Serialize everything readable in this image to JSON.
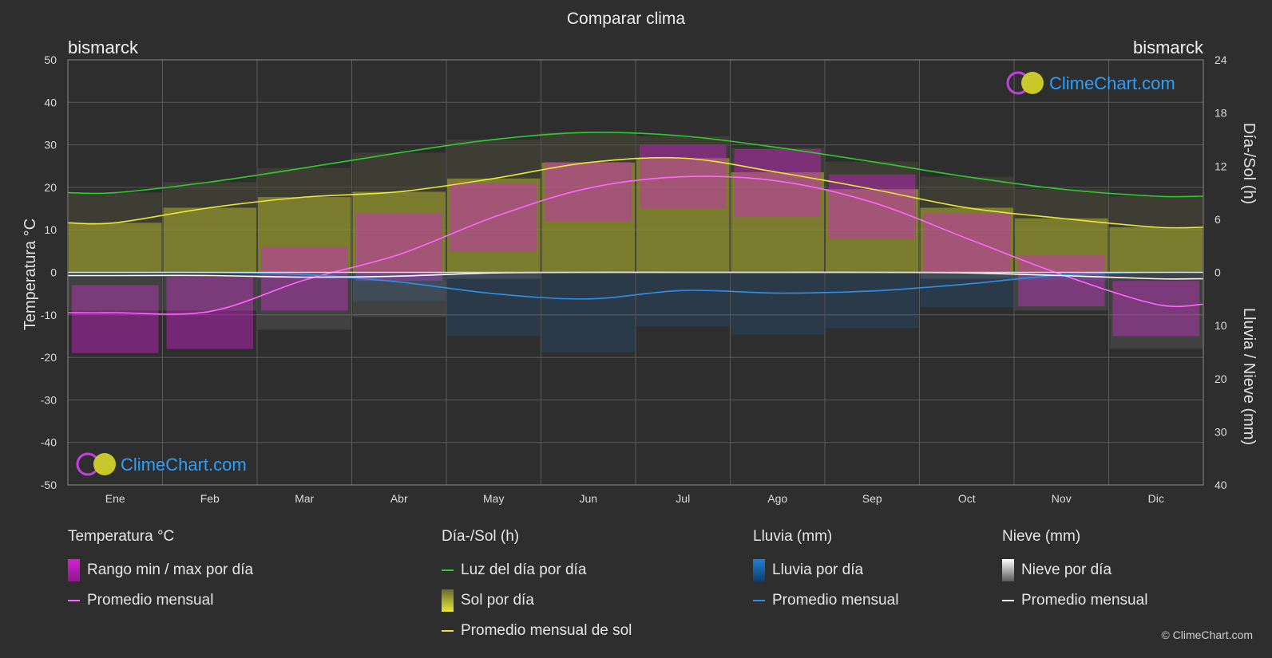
{
  "title": "Comparar clima",
  "location_left": "bismarck",
  "location_right": "bismarck",
  "brand": "ClimeChart.com",
  "copyright": "© ClimeChart.com",
  "colors": {
    "background": "#2e2e2e",
    "temp_range": "#d61fd6",
    "temp_avg": "#ff66ff",
    "daylight": "#2ecc2e",
    "sunshine_fill": "#b0b02a",
    "sun_avg": "#e8e83a",
    "rain": "#1f7fd6",
    "rain_avg": "#2f8fe8",
    "snow": "#9a9a9a",
    "snow_avg": "#ffffff",
    "brand_text": "#2aa0ff"
  },
  "legend": {
    "temperature": {
      "title": "Temperatura °C",
      "items": [
        "Rango min / max por día",
        "Promedio mensual"
      ]
    },
    "daylight": {
      "title": "Día-/Sol (h)",
      "items": [
        "Luz del día por día",
        "Sol por día",
        "Promedio mensual de sol"
      ]
    },
    "rain": {
      "title": "Lluvia (mm)",
      "items": [
        "Lluvia por día",
        "Promedio mensual"
      ]
    },
    "snow": {
      "title": "Nieve (mm)",
      "items": [
        "Nieve por día",
        "Promedio mensual"
      ]
    }
  },
  "chart_data": {
    "type": "line",
    "title": "Comparar clima",
    "categories": [
      "Ene",
      "Feb",
      "Mar",
      "Abr",
      "May",
      "Jun",
      "Jul",
      "Ago",
      "Sep",
      "Oct",
      "Nov",
      "Dic"
    ],
    "y_left": {
      "label": "Temperatura °C",
      "range": [
        -50,
        50
      ],
      "ticks": [
        50,
        40,
        30,
        20,
        10,
        0,
        -10,
        -20,
        -30,
        -40,
        -50
      ]
    },
    "y_right_top": {
      "label": "Día-/Sol (h)",
      "range": [
        0,
        24
      ],
      "ticks": [
        24,
        18,
        12,
        6,
        0
      ]
    },
    "y_right_bottom": {
      "label": "Lluvia / Nieve (mm)",
      "range": [
        0,
        40
      ],
      "ticks": [
        0,
        10,
        20,
        30,
        40
      ]
    },
    "grid": true,
    "series": [
      {
        "name": "Promedio mensual",
        "axis": "temperature",
        "values": [
          -9.5,
          -9.2,
          -1.8,
          4.2,
          13,
          19.8,
          22.5,
          21.5,
          16.5,
          8,
          -0.5,
          -7.5
        ]
      },
      {
        "name": "Luz del día por día",
        "axis": "hours",
        "values": [
          9.0,
          10.2,
          11.8,
          13.5,
          15.0,
          15.8,
          15.4,
          14.1,
          12.5,
          10.8,
          9.4,
          8.6
        ]
      },
      {
        "name": "Promedio mensual de sol",
        "axis": "hours",
        "values": [
          5.6,
          7.3,
          8.5,
          9.1,
          10.6,
          12.4,
          12.9,
          11.3,
          9.4,
          7.3,
          6.1,
          5.1
        ]
      },
      {
        "name": "Promedio mensual",
        "axis": "precipitation",
        "kind": "rain",
        "values": [
          0.0,
          0.0,
          0.4,
          1.8,
          4.0,
          5.0,
          3.4,
          3.9,
          3.5,
          2.2,
          0.5,
          0.0
        ]
      },
      {
        "name": "Promedio mensual",
        "axis": "precipitation",
        "kind": "snow",
        "values": [
          0.6,
          0.6,
          0.9,
          0.7,
          0.1,
          0.0,
          0.0,
          0.0,
          0.0,
          0.1,
          0.6,
          1.2
        ]
      }
    ],
    "temp_range_band": {
      "name": "Rango min / max por día",
      "min": [
        -19,
        -18,
        -9,
        -2,
        5,
        12,
        15,
        13,
        8,
        0,
        -8,
        -15
      ],
      "max": [
        -3,
        -1,
        6,
        14,
        21,
        26,
        30,
        29,
        23,
        14,
        4,
        -2
      ]
    }
  }
}
